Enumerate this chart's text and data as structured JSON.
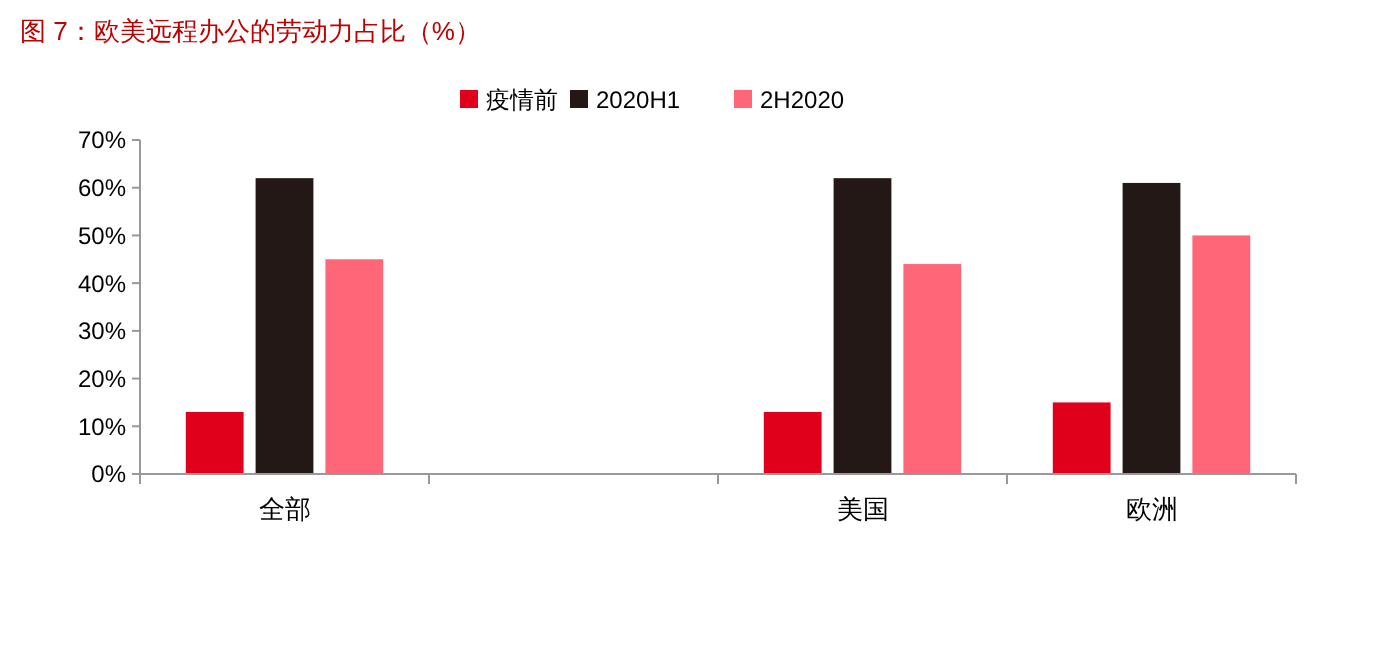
{
  "chart_data": {
    "type": "bar",
    "title": "图 7：欧美远程办公的劳动力占比（%）",
    "categories": [
      "全部",
      null,
      "美国",
      "欧洲"
    ],
    "series": [
      {
        "name": "疫情前",
        "color": "#e0001b",
        "values": [
          13,
          null,
          13,
          15
        ]
      },
      {
        "name": "2020H1",
        "color": "#231815",
        "values": [
          62,
          null,
          62,
          61
        ]
      },
      {
        "name": "2H2020",
        "color": "#ff6677",
        "values": [
          45,
          null,
          44,
          50
        ]
      }
    ],
    "ylim": [
      0,
      70
    ],
    "yticks": [
      {
        "value": 0,
        "label": "0%"
      },
      {
        "value": 10,
        "label": "10%"
      },
      {
        "value": 20,
        "label": "20%"
      },
      {
        "value": 30,
        "label": "30%"
      },
      {
        "value": 40,
        "label": "40%"
      },
      {
        "value": 50,
        "label": "50%"
      },
      {
        "value": 60,
        "label": "60%"
      },
      {
        "value": 70,
        "label": "70%"
      }
    ],
    "legend": "top",
    "grid": false
  }
}
